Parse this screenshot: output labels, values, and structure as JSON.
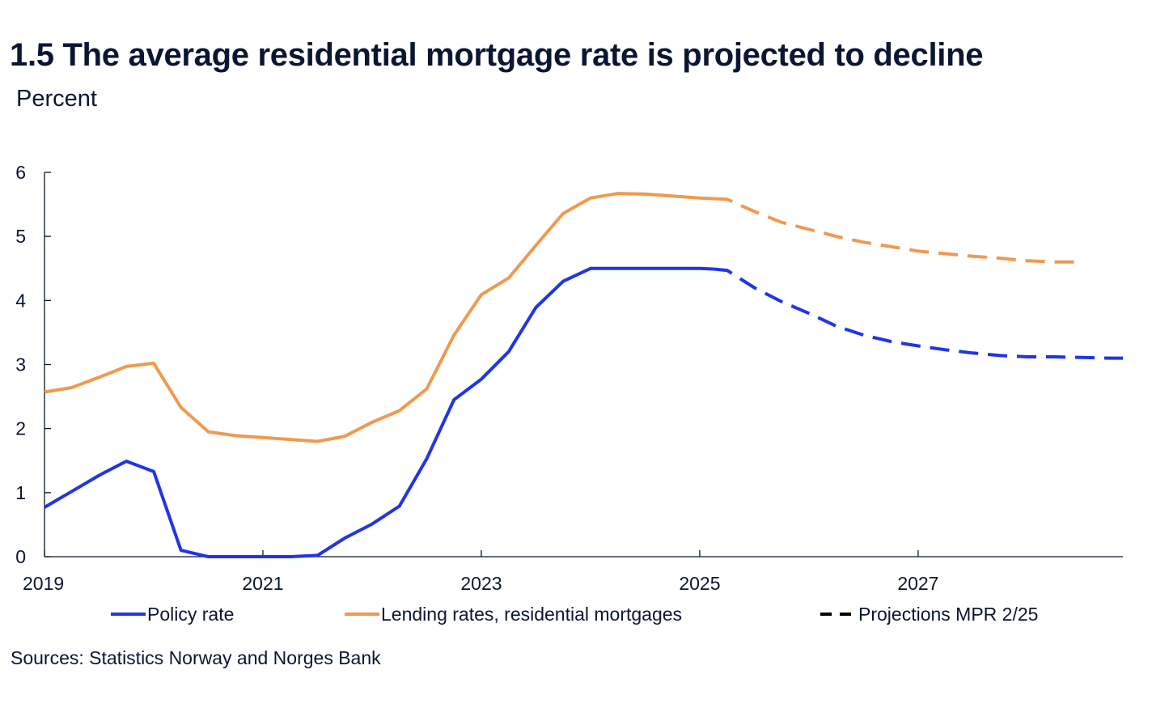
{
  "title": "1.5 The average residential mortgage rate is projected to decline",
  "subtitle": "Percent",
  "source": "Sources: Statistics Norway and  Norges Bank",
  "colors": {
    "policy": "#1f35e6",
    "lending": "#ef9a4e",
    "projection_legend": "#000000",
    "axis": "#0b1633"
  },
  "chart_data": {
    "type": "line",
    "title": "1.5 The average residential mortgage rate is projected to decline",
    "ylabel": "Percent",
    "xlabel": "",
    "xlim": [
      2019,
      2028.875
    ],
    "ylim": [
      0,
      6
    ],
    "yticks": [
      "0",
      "1",
      "2",
      "3",
      "4",
      "5",
      "6"
    ],
    "xticks": [
      "2019",
      "2021",
      "2023",
      "2025",
      "2027"
    ],
    "grid": false,
    "legend": {
      "position": "bottom",
      "entries": [
        "Policy rate",
        "Lending rates, residential mortgages",
        "Projections MPR 2/25"
      ]
    },
    "series": [
      {
        "name": "Policy rate",
        "color": "#1f35e6",
        "x": [
          2019.0,
          2019.25,
          2019.5,
          2019.75,
          2020.0,
          2020.25,
          2020.5,
          2020.75,
          2021.0,
          2021.25,
          2021.5,
          2021.75,
          2022.0,
          2022.25,
          2022.5,
          2022.75,
          2023.0,
          2023.25,
          2023.5,
          2023.75,
          2024.0,
          2024.25,
          2024.5,
          2024.75,
          2025.0,
          2025.125
        ],
        "values": [
          0.77,
          1.02,
          1.27,
          1.49,
          1.33,
          0.1,
          0.0,
          0.0,
          0.0,
          0.0,
          0.02,
          0.29,
          0.51,
          0.79,
          1.53,
          2.45,
          2.77,
          3.2,
          3.89,
          4.3,
          4.5,
          4.5,
          4.5,
          4.5,
          4.5,
          4.49
        ],
        "projection": {
          "x": [
            2025.125,
            2025.25,
            2025.5,
            2025.75,
            2026.0,
            2026.25,
            2026.5,
            2026.75,
            2027.0,
            2027.25,
            2027.5,
            2027.75,
            2028.0,
            2028.25,
            2028.5,
            2028.75,
            2028.875
          ],
          "values": [
            4.49,
            4.47,
            4.2,
            3.98,
            3.8,
            3.6,
            3.46,
            3.36,
            3.29,
            3.23,
            3.18,
            3.14,
            3.12,
            3.12,
            3.11,
            3.1,
            3.1
          ]
        }
      },
      {
        "name": "Lending rates, residential mortgages",
        "color": "#ef9a4e",
        "x": [
          2019.0,
          2019.25,
          2019.5,
          2019.75,
          2020.0,
          2020.25,
          2020.5,
          2020.75,
          2021.0,
          2021.25,
          2021.5,
          2021.75,
          2022.0,
          2022.25,
          2022.5,
          2022.75,
          2023.0,
          2023.25,
          2023.5,
          2023.75,
          2024.0,
          2024.25,
          2024.5,
          2024.75,
          2025.0,
          2025.125
        ],
        "values": [
          2.57,
          2.64,
          2.8,
          2.97,
          3.02,
          2.33,
          1.95,
          1.89,
          1.86,
          1.83,
          1.8,
          1.88,
          2.1,
          2.28,
          2.62,
          3.46,
          4.09,
          4.35,
          4.86,
          5.36,
          5.6,
          5.67,
          5.66,
          5.63,
          5.6,
          5.59
        ],
        "projection": {
          "x": [
            2025.125,
            2025.25,
            2025.5,
            2025.75,
            2026.0,
            2026.25,
            2026.5,
            2026.75,
            2027.0,
            2027.25,
            2027.5,
            2027.75,
            2028.0,
            2028.25,
            2028.5
          ],
          "values": [
            5.59,
            5.58,
            5.39,
            5.22,
            5.11,
            5.0,
            4.91,
            4.84,
            4.77,
            4.73,
            4.69,
            4.66,
            4.62,
            4.6,
            4.6
          ]
        }
      }
    ]
  }
}
